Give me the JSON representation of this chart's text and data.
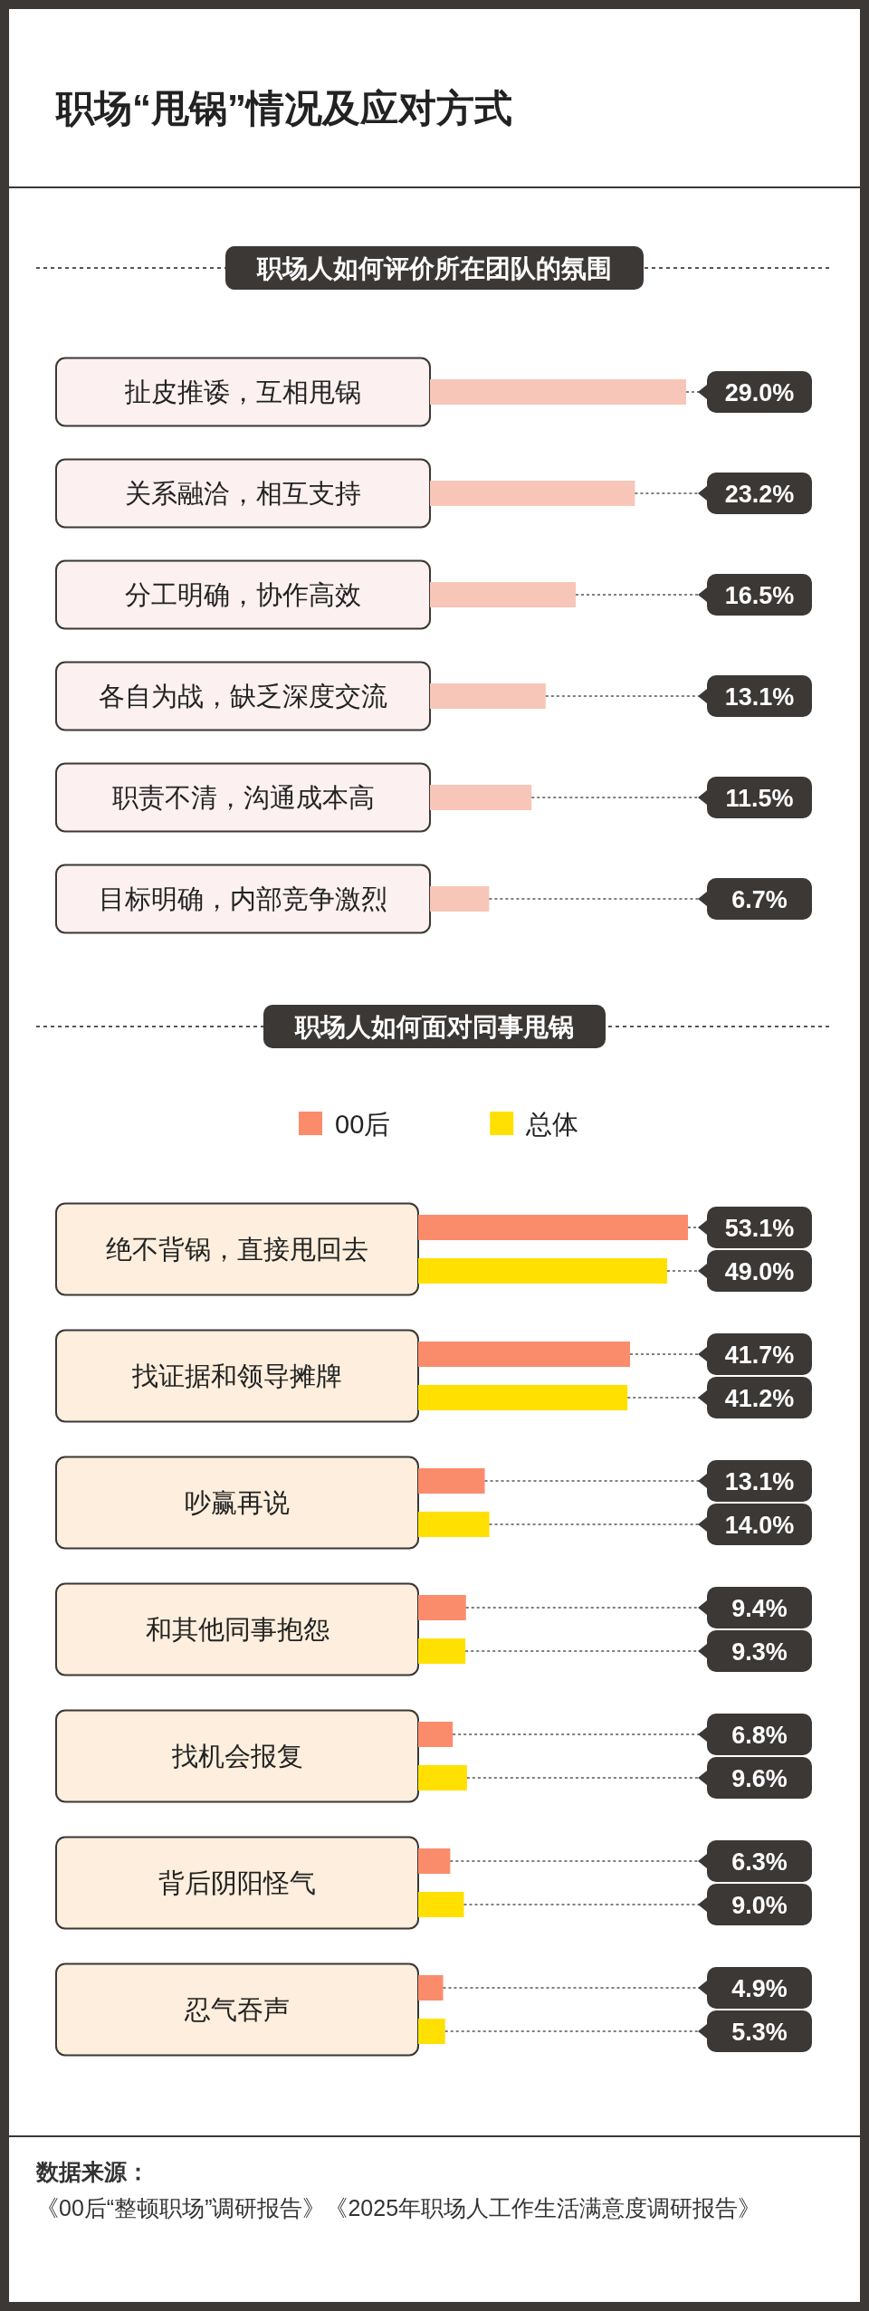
{
  "chart_data": [
    {
      "type": "bar",
      "orientation": "horizontal",
      "title": "职场“甩锅”情况及应对方式",
      "subtitle": "职场人如何评价所在团队的氛围",
      "categories": [
        "扯皮推诿，互相甩锅",
        "关系融洽，相互支持",
        "分工明确，协作高效",
        "各自为战，缺乏深度交流",
        "职责不清，沟通成本高",
        "目标明确，内部竞争激烈"
      ],
      "values": [
        29.0,
        23.2,
        16.5,
        13.1,
        11.5,
        6.7
      ],
      "value_labels": [
        "29.0%",
        "23.2%",
        "16.5%",
        "13.1%",
        "11.5%",
        "6.7%"
      ],
      "color": "#f7c6b8"
    },
    {
      "type": "bar",
      "orientation": "horizontal",
      "title": "职场人如何面对同事甩锅",
      "legend": "top",
      "categories": [
        "绝不背锅，直接甩回去",
        "找证据和领导摊牌",
        "吵赢再说",
        "和其他同事抱怨",
        "找机会报复",
        "背后阴阳怪气",
        "忍气吞声"
      ],
      "series": [
        {
          "name": "00后",
          "color": "#fa8c6c",
          "values": [
            53.1,
            41.7,
            13.1,
            9.4,
            6.8,
            6.3,
            4.9
          ],
          "value_labels": [
            "53.1%",
            "41.7%",
            "13.1%",
            "9.4%",
            "6.8%",
            "6.3%",
            "4.9%"
          ]
        },
        {
          "name": "总体",
          "color": "#ffe000",
          "values": [
            49.0,
            41.2,
            14.0,
            9.3,
            9.6,
            9.0,
            5.3
          ],
          "value_labels": [
            "49.0%",
            "41.2%",
            "14.0%",
            "9.3%",
            "9.6%",
            "9.0%",
            "5.3%"
          ]
        }
      ],
      "annotations": [
        "数据来源：",
        "《00后“整顿职场”调研报告》《2025年职场人工作生活满意度调研报告》"
      ]
    }
  ]
}
